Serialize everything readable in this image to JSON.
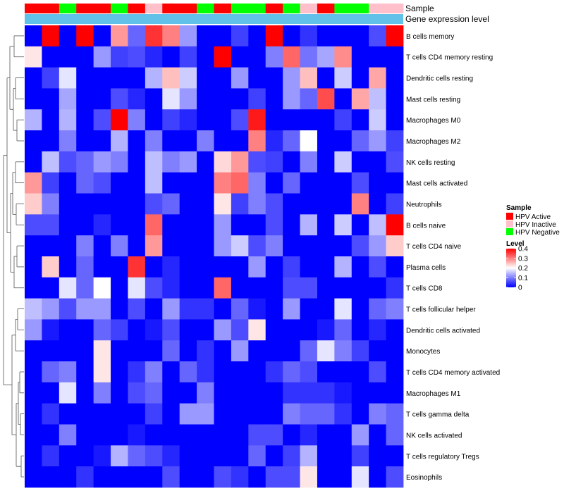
{
  "chart_data": {
    "type": "heatmap",
    "title": "",
    "colorscale": {
      "low": "#0000ff",
      "mid": "#ffffff",
      "high": "#ff0000",
      "min": 0,
      "max": 0.4,
      "midpoint": 0.2
    },
    "annotation_tracks": [
      {
        "label": "Sample",
        "colors": [
          "#ff0000",
          "#ff0000",
          "#00ff00",
          "#ff0000",
          "#ff0000",
          "#00ff00",
          "#ff0000",
          "#ffc0cb",
          "#ff0000",
          "#ff0000",
          "#00ff00",
          "#ff0000",
          "#00ff00",
          "#00ff00",
          "#ff0000",
          "#00ff00",
          "#ffc0cb",
          "#ff0000",
          "#00ff00",
          "#00ff00",
          "#ffc0cb",
          "#ffc0cb"
        ]
      },
      {
        "label": "Gene expression level",
        "color": "#62c1e9"
      }
    ],
    "rows": [
      "B cells memory",
      "T cells CD4 memory resting",
      "Dendritic cells resting",
      "Mast cells resting",
      "Macrophages M0",
      "Macrophages M2",
      "NK cells resting",
      "Mast cells activated",
      "Neutrophils",
      "B cells naive",
      "T cells CD4 naive",
      "Plasma cells",
      "T cells CD8",
      "T cells follicular helper",
      "Dendritic cells activated",
      "Monocytes",
      "T cells CD4 memory activated",
      "Macrophages M1",
      "T cells gamma delta",
      "NK cells activated",
      "T cells regulatory  Tregs",
      "Eosinophils"
    ],
    "values": [
      [
        0.0,
        0.4,
        0.0,
        0.4,
        0.0,
        0.28,
        0.08,
        0.36,
        0.3,
        0.12,
        0.0,
        0.0,
        0.05,
        0.0,
        0.4,
        0.0,
        0.04,
        0.0,
        0.0,
        0.0,
        0.06,
        0.4
      ],
      [
        0.22,
        0.0,
        0.0,
        0.0,
        0.12,
        0.05,
        0.06,
        0.03,
        0.0,
        0.05,
        0.0,
        0.4,
        0.0,
        0.0,
        0.1,
        0.32,
        0.09,
        0.13,
        0.29,
        0.0,
        0.0,
        0.0
      ],
      [
        0.0,
        0.05,
        0.18,
        0.0,
        0.0,
        0.0,
        0.0,
        0.14,
        0.25,
        0.16,
        0.0,
        0.0,
        0.12,
        0.0,
        0.0,
        0.12,
        0.25,
        0.0,
        0.16,
        0.0,
        0.27,
        0.0
      ],
      [
        0.0,
        0.0,
        0.13,
        0.0,
        0.0,
        0.06,
        0.03,
        0.0,
        0.18,
        0.12,
        0.0,
        0.0,
        0.0,
        0.05,
        0.0,
        0.12,
        0.08,
        0.34,
        0.0,
        0.27,
        0.15,
        0.0
      ],
      [
        0.14,
        0.0,
        0.14,
        0.0,
        0.06,
        0.4,
        0.1,
        0.0,
        0.05,
        0.03,
        0.0,
        0.0,
        0.06,
        0.38,
        0.0,
        0.0,
        0.0,
        0.0,
        0.05,
        0.0,
        0.16,
        0.0
      ],
      [
        0.0,
        0.0,
        0.1,
        0.0,
        0.0,
        0.14,
        0.0,
        0.1,
        0.0,
        0.0,
        0.1,
        0.0,
        0.0,
        0.3,
        0.03,
        0.08,
        0.2,
        0.0,
        0.0,
        0.08,
        0.12,
        0.05
      ],
      [
        0.0,
        0.15,
        0.06,
        0.08,
        0.12,
        0.1,
        0.0,
        0.15,
        0.1,
        0.12,
        0.0,
        0.23,
        0.28,
        0.06,
        0.05,
        0.0,
        0.1,
        0.0,
        0.16,
        0.0,
        0.0,
        0.06
      ],
      [
        0.28,
        0.05,
        0.0,
        0.08,
        0.06,
        0.0,
        0.0,
        0.15,
        0.0,
        0.0,
        0.0,
        0.3,
        0.32,
        0.1,
        0.0,
        0.08,
        0.0,
        0.0,
        0.0,
        0.06,
        0.0,
        0.0
      ],
      [
        0.24,
        0.1,
        0.0,
        0.0,
        0.0,
        0.0,
        0.0,
        0.06,
        0.08,
        0.0,
        0.0,
        0.22,
        0.05,
        0.1,
        0.06,
        0.0,
        0.0,
        0.0,
        0.0,
        0.3,
        0.0,
        0.05
      ],
      [
        0.06,
        0.06,
        0.0,
        0.0,
        0.03,
        0.0,
        0.0,
        0.32,
        0.0,
        0.0,
        0.0,
        0.12,
        0.0,
        0.0,
        0.06,
        0.0,
        0.14,
        0.0,
        0.16,
        0.0,
        0.15,
        0.4
      ],
      [
        0.0,
        0.0,
        0.0,
        0.1,
        0.0,
        0.1,
        0.0,
        0.28,
        0.0,
        0.0,
        0.0,
        0.12,
        0.16,
        0.06,
        0.1,
        0.0,
        0.0,
        0.0,
        0.0,
        0.06,
        0.12,
        0.24
      ],
      [
        0.0,
        0.24,
        0.0,
        0.08,
        0.0,
        0.0,
        0.36,
        0.0,
        0.03,
        0.0,
        0.0,
        0.0,
        0.0,
        0.12,
        0.0,
        0.05,
        0.0,
        0.0,
        0.14,
        0.0,
        0.06,
        0.0
      ],
      [
        0.0,
        0.0,
        0.18,
        0.08,
        0.2,
        0.0,
        0.18,
        0.06,
        0.03,
        0.0,
        0.0,
        0.32,
        0.0,
        0.0,
        0.0,
        0.06,
        0.06,
        0.0,
        0.0,
        0.0,
        0.0,
        0.04
      ],
      [
        0.15,
        0.12,
        0.06,
        0.12,
        0.12,
        0.0,
        0.06,
        0.0,
        0.12,
        0.04,
        0.04,
        0.0,
        0.08,
        0.02,
        0.0,
        0.12,
        0.0,
        0.0,
        0.18,
        0.0,
        0.08,
        0.1
      ],
      [
        0.12,
        0.02,
        0.0,
        0.0,
        0.08,
        0.05,
        0.0,
        0.02,
        0.06,
        0.0,
        0.0,
        0.12,
        0.06,
        0.22,
        0.0,
        0.0,
        0.0,
        0.02,
        0.08,
        0.0,
        0.03,
        0.0
      ],
      [
        0.0,
        0.0,
        0.0,
        0.0,
        0.22,
        0.0,
        0.0,
        0.0,
        0.08,
        0.0,
        0.04,
        0.0,
        0.12,
        0.0,
        0.0,
        0.0,
        0.08,
        0.18,
        0.1,
        0.05,
        0.0,
        0.0
      ],
      [
        0.0,
        0.08,
        0.1,
        0.0,
        0.22,
        0.0,
        0.04,
        0.1,
        0.0,
        0.08,
        0.04,
        0.0,
        0.0,
        0.0,
        0.04,
        0.08,
        0.06,
        0.0,
        0.0,
        0.0,
        0.06,
        0.0
      ],
      [
        0.0,
        0.0,
        0.18,
        0.0,
        0.1,
        0.0,
        0.06,
        0.08,
        0.0,
        0.0,
        0.1,
        0.0,
        0.0,
        0.0,
        0.0,
        0.04,
        0.04,
        0.04,
        0.02,
        0.0,
        0.0,
        0.0
      ],
      [
        0.0,
        0.04,
        0.0,
        0.0,
        0.0,
        0.0,
        0.0,
        0.05,
        0.0,
        0.12,
        0.12,
        0.0,
        0.0,
        0.0,
        0.0,
        0.1,
        0.08,
        0.08,
        0.04,
        0.0,
        0.1,
        0.08
      ],
      [
        0.0,
        0.0,
        0.1,
        0.0,
        0.0,
        0.0,
        0.02,
        0.0,
        0.0,
        0.0,
        0.0,
        0.0,
        0.0,
        0.06,
        0.06,
        0.0,
        0.03,
        0.0,
        0.0,
        0.12,
        0.0,
        0.08
      ],
      [
        0.0,
        0.04,
        0.0,
        0.0,
        0.02,
        0.14,
        0.08,
        0.06,
        0.03,
        0.0,
        0.0,
        0.0,
        0.0,
        0.08,
        0.0,
        0.05,
        0.14,
        0.0,
        0.0,
        0.05,
        0.0,
        0.0
      ],
      [
        0.0,
        0.0,
        0.0,
        0.04,
        0.0,
        0.0,
        0.0,
        0.0,
        0.06,
        0.0,
        0.0,
        0.06,
        0.04,
        0.0,
        0.06,
        0.06,
        0.22,
        0.0,
        0.0,
        0.18,
        0.0,
        0.06
      ]
    ],
    "legends": {
      "sample": {
        "title": "Sample",
        "items": [
          {
            "label": "HPV Active",
            "color": "#ff0000"
          },
          {
            "label": "HPV Inactive",
            "color": "#ffc0cb"
          },
          {
            "label": "HPV Negative",
            "color": "#00ff00"
          }
        ]
      },
      "level": {
        "title": "Level",
        "ticks": [
          "0.4",
          "0.3",
          "0.2",
          "0.1",
          "0"
        ],
        "tick_values": [
          0.4,
          0.3,
          0.2,
          0.1,
          0
        ]
      }
    }
  }
}
